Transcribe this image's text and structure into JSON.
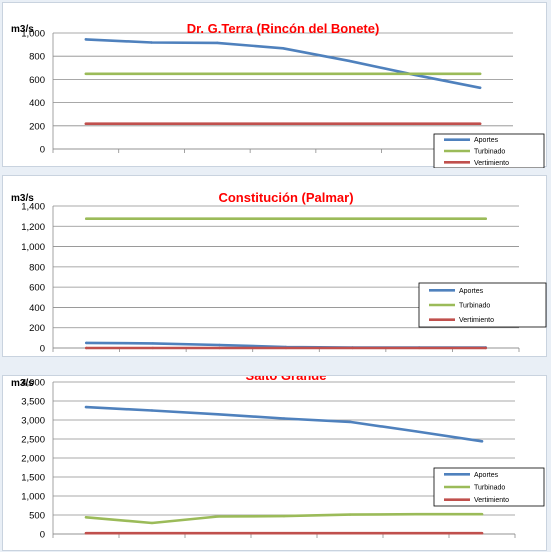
{
  "background_color": "#e9eff6",
  "chart_data": [
    {
      "type": "line",
      "title": "Dr. G.Terra (Rincón del Bonete)",
      "ylabel": "m3/s",
      "ylim": [
        0,
        1000
      ],
      "yticks": [
        "0",
        "200",
        "400",
        "600",
        "800",
        "1,000"
      ],
      "x": [
        1,
        2,
        3,
        4,
        5,
        6,
        7
      ],
      "grid": true,
      "legend_position": "bottom-right",
      "series": [
        {
          "name": "Aportes",
          "color": "#4f81bd",
          "values": [
            945,
            918,
            915,
            868,
            760,
            640,
            528
          ]
        },
        {
          "name": "Turbinado",
          "color": "#9bbb59",
          "values": [
            648,
            648,
            648,
            648,
            648,
            648,
            648
          ]
        },
        {
          "name": "Vertimiento",
          "color": "#c0504d",
          "values": [
            218,
            218,
            218,
            218,
            218,
            218,
            218
          ]
        }
      ]
    },
    {
      "type": "line",
      "title": "Constitución (Palmar)",
      "ylabel": "m3/s",
      "ylim": [
        0,
        1400
      ],
      "yticks": [
        "0",
        "200",
        "400",
        "600",
        "800",
        "1,000",
        "1,200",
        "1,400"
      ],
      "x": [
        1,
        2,
        3,
        4,
        5,
        6,
        7
      ],
      "grid": true,
      "legend_position": "right",
      "series": [
        {
          "name": "Aportes",
          "color": "#4f81bd",
          "values": [
            50,
            45,
            30,
            10,
            5,
            5,
            5
          ]
        },
        {
          "name": "Turbinado",
          "color": "#9bbb59",
          "values": [
            1275,
            1275,
            1275,
            1275,
            1275,
            1275,
            1275
          ]
        },
        {
          "name": "Vertimiento",
          "color": "#c0504d",
          "values": [
            0,
            0,
            0,
            0,
            0,
            0,
            0
          ]
        }
      ]
    },
    {
      "type": "line",
      "title": "Salto Grande",
      "ylabel": "m3/s",
      "ylim": [
        0,
        4000
      ],
      "yticks": [
        "0",
        "500",
        "1,000",
        "1,500",
        "2,000",
        "2,500",
        "3,000",
        "3,500",
        "4,000"
      ],
      "x": [
        1,
        2,
        3,
        4,
        5,
        6,
        7
      ],
      "grid": true,
      "legend_position": "right",
      "series": [
        {
          "name": "Aportes",
          "color": "#4f81bd",
          "values": [
            3340,
            3250,
            3150,
            3040,
            2950,
            2700,
            2440
          ]
        },
        {
          "name": "Turbinado",
          "color": "#9bbb59",
          "values": [
            440,
            290,
            460,
            470,
            510,
            520,
            520
          ]
        },
        {
          "name": "Vertimiento",
          "color": "#c0504d",
          "values": [
            20,
            20,
            20,
            20,
            20,
            20,
            20
          ]
        }
      ]
    }
  ]
}
